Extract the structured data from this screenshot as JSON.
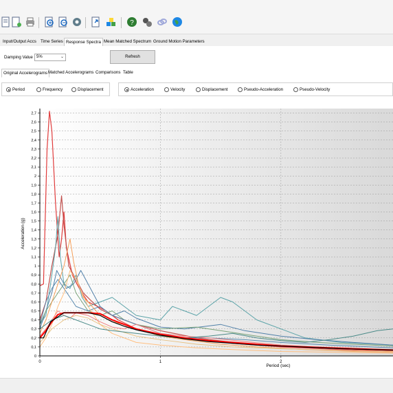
{
  "toolbar": {
    "icons": [
      "document-icon",
      "new-document-icon",
      "print-icon",
      "zoom-in-icon",
      "zoom-out-icon",
      "settings-gear-icon",
      "export-icon",
      "cubes-icon",
      "help-icon",
      "tools-icon",
      "link-icon",
      "globe-icon"
    ]
  },
  "main_tabs": [
    {
      "label": "Input/Output Accs",
      "active": false
    },
    {
      "label": "Time Series",
      "active": false
    },
    {
      "label": "Response Spectra",
      "active": true
    },
    {
      "label": "Mean Matched Spectrum",
      "active": false
    },
    {
      "label": "Ground Motion Parameters",
      "active": false
    }
  ],
  "controls": {
    "damping_label": "Damping Value",
    "damping_value": "5%",
    "refresh_label": "Refresh"
  },
  "sub_tabs": [
    {
      "label": "Original Accelerograms",
      "active": true
    },
    {
      "label": "Matched Accelerograms",
      "active": false
    },
    {
      "label": "Comparisons",
      "active": false
    },
    {
      "label": "Table",
      "active": false
    }
  ],
  "x_options": [
    {
      "label": "Period",
      "checked": true
    },
    {
      "label": "Frequency",
      "checked": false
    },
    {
      "label": "Displacement",
      "checked": false
    }
  ],
  "y_options": [
    {
      "label": "Acceleration",
      "checked": true
    },
    {
      "label": "Velocity",
      "checked": false
    },
    {
      "label": "Displacement",
      "checked": false
    },
    {
      "label": "Pseudo-Acceleration",
      "checked": false
    },
    {
      "label": "Pseudo-Velocity",
      "checked": false
    }
  ],
  "chart_data": {
    "type": "line",
    "xlabel": "Period (sec)",
    "ylabel": "Acceleration (g)",
    "xlim": [
      0,
      2.93
    ],
    "ylim": [
      0,
      2.75
    ],
    "x_ticks": [
      "0",
      "1",
      "2"
    ],
    "y_ticks": [
      "0",
      "0,1",
      "0,2",
      "0,3",
      "0,4",
      "0,5",
      "0,6",
      "0,7",
      "0,8",
      "0,9",
      "1",
      "1,1",
      "1,2",
      "1,3",
      "1,4",
      "1,5",
      "1,6",
      "1,7",
      "1,8",
      "1,9",
      "2",
      "2,1",
      "2,2",
      "2,3",
      "2,4",
      "2,5",
      "2,6",
      "2,7"
    ],
    "grid": "dashed",
    "series": [
      {
        "color": "#e03b3b",
        "width": 1.2,
        "points": [
          [
            0,
            0.78
          ],
          [
            0.03,
            0.8
          ],
          [
            0.06,
            2.3
          ],
          [
            0.08,
            2.72
          ],
          [
            0.1,
            2.5
          ],
          [
            0.13,
            1.7
          ],
          [
            0.16,
            1.1
          ],
          [
            0.18,
            1.3
          ],
          [
            0.2,
            1.6
          ],
          [
            0.22,
            1.2
          ],
          [
            0.27,
            0.9
          ],
          [
            0.3,
            0.82
          ],
          [
            0.34,
            0.72
          ],
          [
            0.4,
            0.6
          ],
          [
            0.48,
            0.55
          ],
          [
            0.55,
            0.5
          ],
          [
            0.65,
            0.4
          ],
          [
            0.8,
            0.3
          ],
          [
            1.0,
            0.23
          ],
          [
            1.3,
            0.18
          ],
          [
            1.6,
            0.14
          ],
          [
            2.0,
            0.1
          ],
          [
            2.5,
            0.07
          ],
          [
            2.93,
            0.05
          ]
        ]
      },
      {
        "color": "#c0504d",
        "width": 1.2,
        "points": [
          [
            0,
            0.4
          ],
          [
            0.05,
            0.6
          ],
          [
            0.1,
            1.0
          ],
          [
            0.15,
            1.35
          ],
          [
            0.18,
            1.78
          ],
          [
            0.2,
            1.45
          ],
          [
            0.24,
            1.0
          ],
          [
            0.3,
            0.85
          ],
          [
            0.36,
            0.7
          ],
          [
            0.42,
            0.62
          ],
          [
            0.5,
            0.52
          ],
          [
            0.6,
            0.45
          ],
          [
            0.8,
            0.35
          ],
          [
            1.0,
            0.28
          ],
          [
            1.3,
            0.2
          ],
          [
            1.6,
            0.15
          ],
          [
            2.0,
            0.11
          ],
          [
            2.5,
            0.08
          ],
          [
            2.93,
            0.06
          ]
        ]
      },
      {
        "color": "#5aa3a8",
        "width": 1.0,
        "points": [
          [
            0,
            0.35
          ],
          [
            0.05,
            0.45
          ],
          [
            0.1,
            0.9
          ],
          [
            0.13,
            1.2
          ],
          [
            0.15,
            1.55
          ],
          [
            0.17,
            1.1
          ],
          [
            0.2,
            0.8
          ],
          [
            0.25,
            0.75
          ],
          [
            0.3,
            0.9
          ],
          [
            0.35,
            0.65
          ],
          [
            0.4,
            0.55
          ],
          [
            0.5,
            0.6
          ],
          [
            0.6,
            0.65
          ],
          [
            0.7,
            0.55
          ],
          [
            0.8,
            0.45
          ],
          [
            1.0,
            0.4
          ],
          [
            1.1,
            0.55
          ],
          [
            1.2,
            0.5
          ],
          [
            1.3,
            0.45
          ],
          [
            1.4,
            0.55
          ],
          [
            1.5,
            0.65
          ],
          [
            1.6,
            0.6
          ],
          [
            1.7,
            0.5
          ],
          [
            1.8,
            0.4
          ],
          [
            2.0,
            0.3
          ],
          [
            2.2,
            0.2
          ],
          [
            2.5,
            0.15
          ],
          [
            2.93,
            0.12
          ]
        ]
      },
      {
        "color": "#4f7fa8",
        "width": 1.0,
        "points": [
          [
            0,
            0.3
          ],
          [
            0.05,
            0.5
          ],
          [
            0.1,
            0.7
          ],
          [
            0.14,
            0.95
          ],
          [
            0.18,
            0.85
          ],
          [
            0.22,
            0.75
          ],
          [
            0.28,
            0.8
          ],
          [
            0.34,
            0.95
          ],
          [
            0.4,
            0.8
          ],
          [
            0.5,
            0.55
          ],
          [
            0.6,
            0.45
          ],
          [
            0.7,
            0.5
          ],
          [
            0.8,
            0.42
          ],
          [
            1.0,
            0.32
          ],
          [
            1.2,
            0.3
          ],
          [
            1.5,
            0.35
          ],
          [
            1.7,
            0.28
          ],
          [
            2.0,
            0.22
          ],
          [
            2.3,
            0.18
          ],
          [
            2.6,
            0.15
          ],
          [
            2.93,
            0.12
          ]
        ]
      },
      {
        "color": "#7aa37a",
        "width": 1.0,
        "points": [
          [
            0,
            0.35
          ],
          [
            0.05,
            0.5
          ],
          [
            0.1,
            0.6
          ],
          [
            0.15,
            0.7
          ],
          [
            0.2,
            0.8
          ],
          [
            0.25,
            0.9
          ],
          [
            0.3,
            0.7
          ],
          [
            0.35,
            0.6
          ],
          [
            0.4,
            0.5
          ],
          [
            0.5,
            0.45
          ],
          [
            0.6,
            0.5
          ],
          [
            0.7,
            0.4
          ],
          [
            0.8,
            0.35
          ],
          [
            1.0,
            0.3
          ],
          [
            1.3,
            0.32
          ],
          [
            1.5,
            0.28
          ],
          [
            1.8,
            0.22
          ],
          [
            2.0,
            0.18
          ],
          [
            2.3,
            0.15
          ],
          [
            2.6,
            0.13
          ],
          [
            2.93,
            0.11
          ]
        ]
      },
      {
        "color": "#5a8ab0",
        "width": 1.0,
        "points": [
          [
            0,
            0.35
          ],
          [
            0.05,
            0.6
          ],
          [
            0.1,
            0.75
          ],
          [
            0.15,
            0.85
          ],
          [
            0.2,
            0.75
          ],
          [
            0.25,
            0.65
          ],
          [
            0.3,
            0.55
          ],
          [
            0.4,
            0.5
          ],
          [
            0.5,
            0.55
          ],
          [
            0.6,
            0.45
          ],
          [
            0.7,
            0.4
          ],
          [
            0.9,
            0.3
          ],
          [
            1.0,
            0.25
          ],
          [
            1.2,
            0.2
          ],
          [
            1.4,
            0.2
          ],
          [
            1.7,
            0.18
          ],
          [
            2.0,
            0.15
          ],
          [
            2.4,
            0.12
          ],
          [
            2.93,
            0.09
          ]
        ]
      },
      {
        "color": "#f5a05a",
        "width": 1.0,
        "points": [
          [
            0,
            0.25
          ],
          [
            0.05,
            0.4
          ],
          [
            0.1,
            0.6
          ],
          [
            0.15,
            0.8
          ],
          [
            0.2,
            1.0
          ],
          [
            0.25,
            1.3
          ],
          [
            0.28,
            1.05
          ],
          [
            0.32,
            0.8
          ],
          [
            0.36,
            0.65
          ],
          [
            0.4,
            0.6
          ],
          [
            0.5,
            0.45
          ],
          [
            0.6,
            0.38
          ],
          [
            0.7,
            0.35
          ],
          [
            0.8,
            0.3
          ],
          [
            1.0,
            0.22
          ],
          [
            1.2,
            0.18
          ],
          [
            1.5,
            0.13
          ],
          [
            1.8,
            0.1
          ],
          [
            2.2,
            0.07
          ],
          [
            2.6,
            0.05
          ],
          [
            2.93,
            0.04
          ]
        ]
      },
      {
        "color": "#ffbf80",
        "width": 1.0,
        "points": [
          [
            0,
            0.1
          ],
          [
            0.05,
            0.2
          ],
          [
            0.1,
            0.35
          ],
          [
            0.15,
            0.55
          ],
          [
            0.2,
            0.7
          ],
          [
            0.25,
            0.95
          ],
          [
            0.3,
            0.85
          ],
          [
            0.35,
            0.7
          ],
          [
            0.4,
            0.55
          ],
          [
            0.5,
            0.35
          ],
          [
            0.6,
            0.25
          ],
          [
            0.8,
            0.15
          ],
          [
            1.0,
            0.12
          ],
          [
            1.3,
            0.09
          ],
          [
            1.6,
            0.07
          ],
          [
            2.0,
            0.05
          ],
          [
            2.5,
            0.04
          ],
          [
            2.93,
            0.03
          ]
        ]
      },
      {
        "color": "#f08080",
        "width": 1.0,
        "points": [
          [
            0,
            0.22
          ],
          [
            0.05,
            0.3
          ],
          [
            0.1,
            0.4
          ],
          [
            0.15,
            0.5
          ],
          [
            0.2,
            0.45
          ],
          [
            0.25,
            0.42
          ],
          [
            0.3,
            0.48
          ],
          [
            0.4,
            0.45
          ],
          [
            0.5,
            0.38
          ],
          [
            0.6,
            0.32
          ],
          [
            0.7,
            0.3
          ],
          [
            0.8,
            0.35
          ],
          [
            0.9,
            0.3
          ],
          [
            1.0,
            0.25
          ],
          [
            1.2,
            0.22
          ],
          [
            1.4,
            0.2
          ],
          [
            1.7,
            0.16
          ],
          [
            2.0,
            0.12
          ],
          [
            2.4,
            0.09
          ],
          [
            2.93,
            0.07
          ]
        ]
      },
      {
        "color": "#e8c080",
        "width": 0.9,
        "points": [
          [
            0,
            0.15
          ],
          [
            0.05,
            0.22
          ],
          [
            0.1,
            0.3
          ],
          [
            0.15,
            0.35
          ],
          [
            0.2,
            0.4
          ],
          [
            0.3,
            0.45
          ],
          [
            0.4,
            0.42
          ],
          [
            0.5,
            0.35
          ],
          [
            0.6,
            0.3
          ],
          [
            0.8,
            0.22
          ],
          [
            1.0,
            0.18
          ],
          [
            1.3,
            0.13
          ],
          [
            1.6,
            0.1
          ],
          [
            2.0,
            0.08
          ],
          [
            2.5,
            0.06
          ],
          [
            2.93,
            0.05
          ]
        ]
      },
      {
        "color": "#4a8a88",
        "width": 1.0,
        "points": [
          [
            0,
            0.3
          ],
          [
            0.1,
            0.4
          ],
          [
            0.2,
            0.45
          ],
          [
            0.3,
            0.4
          ],
          [
            0.4,
            0.35
          ],
          [
            0.5,
            0.3
          ],
          [
            0.6,
            0.28
          ],
          [
            0.8,
            0.25
          ],
          [
            1.0,
            0.22
          ],
          [
            1.2,
            0.2
          ],
          [
            1.4,
            0.22
          ],
          [
            1.6,
            0.25
          ],
          [
            1.8,
            0.2
          ],
          [
            2.0,
            0.17
          ],
          [
            2.2,
            0.15
          ],
          [
            2.4,
            0.18
          ],
          [
            2.6,
            0.22
          ],
          [
            2.8,
            0.28
          ],
          [
            2.93,
            0.3
          ]
        ]
      },
      {
        "color": "#ff0000",
        "width": 2.0,
        "points": [
          [
            0,
            0.2
          ],
          [
            0.05,
            0.28
          ],
          [
            0.1,
            0.38
          ],
          [
            0.15,
            0.46
          ],
          [
            0.2,
            0.48
          ],
          [
            0.3,
            0.48
          ],
          [
            0.4,
            0.48
          ],
          [
            0.5,
            0.47
          ],
          [
            0.6,
            0.4
          ],
          [
            0.7,
            0.35
          ],
          [
            0.8,
            0.3
          ],
          [
            0.9,
            0.27
          ],
          [
            1.0,
            0.24
          ],
          [
            1.2,
            0.2
          ],
          [
            1.4,
            0.17
          ],
          [
            1.6,
            0.15
          ],
          [
            1.8,
            0.13
          ],
          [
            2.0,
            0.11
          ],
          [
            2.2,
            0.1
          ],
          [
            2.4,
            0.09
          ],
          [
            2.6,
            0.08
          ],
          [
            2.8,
            0.07
          ],
          [
            2.93,
            0.065
          ]
        ]
      },
      {
        "color": "#000000",
        "width": 1.2,
        "points": [
          [
            0,
            0.2
          ],
          [
            0.03,
            0.2
          ],
          [
            0.09,
            0.38
          ],
          [
            0.2,
            0.48
          ],
          [
            0.3,
            0.48
          ],
          [
            0.4,
            0.48
          ],
          [
            0.5,
            0.45
          ],
          [
            0.6,
            0.38
          ],
          [
            0.7,
            0.33
          ],
          [
            0.8,
            0.29
          ],
          [
            1.0,
            0.23
          ],
          [
            1.2,
            0.19
          ],
          [
            1.4,
            0.16
          ],
          [
            1.6,
            0.14
          ],
          [
            1.8,
            0.12
          ],
          [
            2.0,
            0.11
          ],
          [
            2.5,
            0.08
          ],
          [
            2.93,
            0.065
          ]
        ]
      }
    ]
  }
}
